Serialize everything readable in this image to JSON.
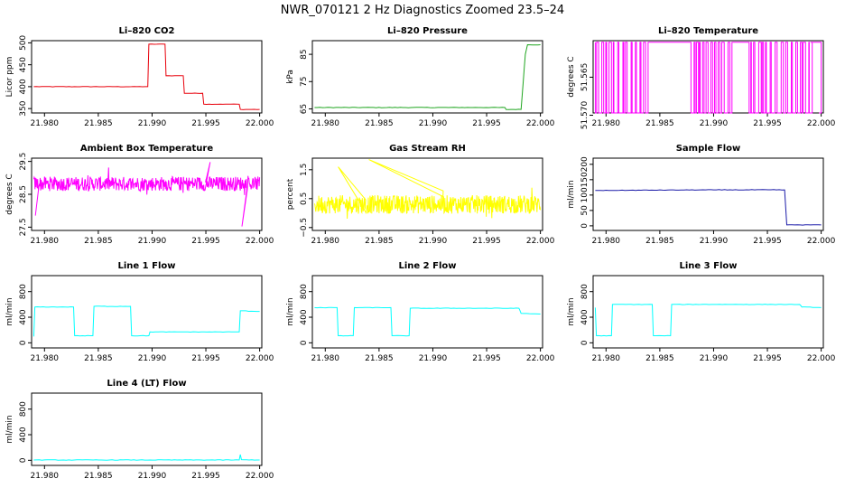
{
  "page": {
    "title": "NWR_070121  2 Hz Diagnostics Zoomed 23.5–24"
  },
  "x_ticks": [
    "21.980",
    "21.985",
    "21.990",
    "21.995",
    "22.000"
  ],
  "chart_data": [
    {
      "type": "line",
      "title": "Li–820 CO2",
      "ylabel": "Licor ppm",
      "xlim": [
        21.9788,
        22.0002
      ],
      "ylim": [
        340,
        505
      ],
      "yticks": [
        350,
        400,
        450,
        500
      ],
      "ytick_labels": [
        "350",
        "400",
        "450",
        "500"
      ],
      "color": "#e8000b",
      "series": [
        {
          "x": [
            21.979,
            21.9896,
            21.9897,
            21.9912,
            21.9913,
            21.9929,
            21.993,
            21.9947,
            21.9948,
            21.9981,
            21.9982,
            22.0
          ],
          "y": [
            400,
            400,
            497,
            497,
            425,
            425,
            385,
            385,
            360,
            360,
            348,
            348
          ]
        }
      ]
    },
    {
      "type": "line",
      "title": "Li–820 Pressure",
      "ylabel": "kPa",
      "xlim": [
        21.9788,
        22.0002
      ],
      "ylim": [
        63.5,
        90
      ],
      "yticks": [
        65,
        75,
        85
      ],
      "ytick_labels": [
        "65",
        "75",
        "85"
      ],
      "color": "#1fa51f",
      "series": [
        {
          "x": [
            21.979,
            21.9967,
            21.9968,
            21.9982,
            21.9984,
            21.9986,
            21.9988,
            22.0
          ],
          "y": [
            65.5,
            65.5,
            64.8,
            64.8,
            75,
            85,
            88.5,
            88.5
          ]
        }
      ]
    },
    {
      "type": "line",
      "title": "Li–820 Temperature",
      "ylabel": "degrees C",
      "xlim": [
        21.9788,
        22.0002
      ],
      "ylim": [
        51.5697,
        51.5602
      ],
      "yticks": [
        51.57,
        51.565
      ],
      "ytick_labels": [
        "51.570",
        "51.565"
      ],
      "color": "#ff00ff",
      "series": [
        {
          "x": [
            21.979,
            22.0
          ],
          "y": [
            51.5604,
            51.5604
          ]
        }
      ],
      "note": "rapid toggling between 51.5604 and 51.5697"
    },
    {
      "type": "line",
      "title": "Ambient Box Temperature",
      "ylabel": "degrees C",
      "xlim": [
        21.9788,
        22.0002
      ],
      "ylim": [
        27.4,
        29.6
      ],
      "yticks": [
        27.5,
        28.5,
        29.5
      ],
      "ytick_labels": [
        "27.5",
        "28.5",
        "29.5"
      ],
      "color": "#ff00ff",
      "series": [
        {
          "x": [
            21.979,
            21.98,
            21.985,
            21.99,
            21.995,
            21.998,
            22.0
          ],
          "y": [
            28.9,
            28.8,
            28.8,
            28.8,
            28.8,
            28.8,
            28.8
          ]
        }
      ]
    },
    {
      "type": "line",
      "title": "Gas Stream RH",
      "ylabel": "percent",
      "xlim": [
        21.9788,
        22.0002
      ],
      "ylim": [
        -0.6,
        1.9
      ],
      "yticks": [
        -0.5,
        0.5,
        1.5
      ],
      "ytick_labels": [
        "−0.5",
        "0.5",
        "1.5"
      ],
      "color": "#ffff00",
      "series": [
        {
          "x": [
            21.979,
            21.985,
            21.99,
            21.995,
            22.0
          ],
          "y": [
            0.3,
            0.35,
            0.3,
            0.3,
            0.3
          ]
        }
      ]
    },
    {
      "type": "line",
      "title": "Sample Flow",
      "ylabel": "ml/min",
      "xlim": [
        21.9788,
        22.0002
      ],
      "ylim": [
        -15,
        220
      ],
      "yticks": [
        0,
        50,
        100,
        150,
        200
      ],
      "ytick_labels": [
        "0",
        "50",
        "100",
        "150",
        "200"
      ],
      "color": "#1a1aa8",
      "series": [
        {
          "x": [
            21.979,
            21.99,
            21.9966,
            21.9968,
            22.0
          ],
          "y": [
            115,
            117,
            117,
            3,
            3
          ]
        }
      ]
    },
    {
      "type": "line",
      "title": "Line 1 Flow",
      "ylabel": "ml/min",
      "xlim": [
        21.9788,
        22.0002
      ],
      "ylim": [
        -80,
        1050
      ],
      "yticks": [
        0,
        400,
        800
      ],
      "ytick_labels": [
        "0",
        "400",
        "800"
      ],
      "color": "#00ffff",
      "series": [
        {
          "x": [
            21.979,
            21.9791,
            21.9827,
            21.9828,
            21.9845,
            21.9846,
            21.988,
            21.9881,
            21.9897,
            21.9898,
            21.9981,
            21.9982,
            22.0
          ],
          "y": [
            100,
            560,
            560,
            110,
            110,
            570,
            570,
            110,
            110,
            170,
            170,
            500,
            490
          ]
        }
      ]
    },
    {
      "type": "line",
      "title": "Line 2 Flow",
      "ylabel": "ml/min",
      "xlim": [
        21.9788,
        22.0002
      ],
      "ylim": [
        -80,
        1050
      ],
      "yticks": [
        0,
        400,
        800
      ],
      "ytick_labels": [
        "0",
        "400",
        "800"
      ],
      "color": "#00ffff",
      "series": [
        {
          "x": [
            21.979,
            21.9811,
            21.9812,
            21.9826,
            21.9827,
            21.9861,
            21.9862,
            21.9878,
            21.9879,
            21.998,
            21.9982,
            22.0
          ],
          "y": [
            550,
            550,
            110,
            110,
            550,
            550,
            110,
            110,
            540,
            540,
            460,
            450
          ]
        }
      ]
    },
    {
      "type": "line",
      "title": "Line 3 Flow",
      "ylabel": "ml/min",
      "xlim": [
        21.9788,
        22.0002
      ],
      "ylim": [
        -80,
        1050
      ],
      "yticks": [
        0,
        400,
        800
      ],
      "ytick_labels": [
        "0",
        "400",
        "800"
      ],
      "color": "#00ffff",
      "series": [
        {
          "x": [
            21.979,
            21.9791,
            21.9805,
            21.9806,
            21.9843,
            21.9844,
            21.986,
            21.9861,
            21.998,
            21.9982,
            22.0
          ],
          "y": [
            550,
            110,
            110,
            600,
            600,
            110,
            110,
            600,
            600,
            560,
            550
          ]
        }
      ]
    },
    {
      "type": "line",
      "title": "Line 4 (LT) Flow",
      "ylabel": "ml/min",
      "xlim": [
        21.9788,
        22.0002
      ],
      "ylim": [
        -80,
        1050
      ],
      "yticks": [
        0,
        400,
        800
      ],
      "ytick_labels": [
        "0",
        "400",
        "800"
      ],
      "color": "#00ffff",
      "series": [
        {
          "x": [
            21.979,
            21.9981,
            21.9982,
            21.9983,
            22.0
          ],
          "y": [
            5,
            5,
            90,
            10,
            5
          ]
        }
      ]
    }
  ]
}
